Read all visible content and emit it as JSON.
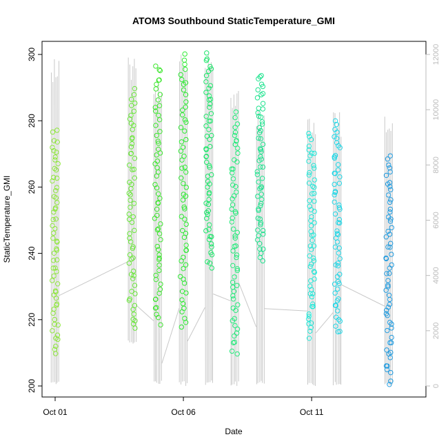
{
  "chart_data": {
    "type": "scatter",
    "title": "ATOM3 Southbound StaticTemperature_GMI",
    "xlabel": "Date",
    "ylabel": "StaticTemperature_GMI",
    "x_ticks": [
      "Oct 01",
      "Oct 06",
      "Oct 11"
    ],
    "x_tick_dates": [
      "2016-10-01",
      "2016-10-06",
      "2016-10-11"
    ],
    "xlim": [
      "2016-10-01",
      "2016-10-15"
    ],
    "ylim": [
      200,
      300
    ],
    "y_ticks": [
      200,
      220,
      240,
      260,
      280,
      300
    ],
    "y2_ticks": [
      0,
      2000,
      4000,
      6000,
      8000,
      10000,
      12000
    ],
    "y2lim": [
      0,
      12000
    ],
    "grid": false,
    "series_points_style": "open circles colored by date (green to blue)",
    "secondary_series_style": "gray altitude line on right axis",
    "flights": [
      {
        "date": "2016-10-01",
        "y_min": 210,
        "y_max": 277,
        "color": "#8ee63c"
      },
      {
        "date": "2016-10-04",
        "y_min": 217,
        "y_max": 289,
        "color": "#6be63c"
      },
      {
        "date": "2016-10-05",
        "y_min": 219,
        "y_max": 297,
        "color": "#3ee62f"
      },
      {
        "date": "2016-10-06",
        "y_min": 218,
        "y_max": 300,
        "color": "#2eea33"
      },
      {
        "date": "2016-10-07",
        "y_min": 236,
        "y_max": 300,
        "color": "#1ce66a"
      },
      {
        "date": "2016-10-08",
        "y_min": 210,
        "y_max": 282,
        "color": "#23ea7a"
      },
      {
        "date": "2016-10-09",
        "y_min": 238,
        "y_max": 294,
        "color": "#1fe38f"
      },
      {
        "date": "2016-10-11",
        "y_min": 215,
        "y_max": 276,
        "color": "#24e8d9"
      },
      {
        "date": "2016-10-12",
        "y_min": 216,
        "y_max": 280,
        "color": "#22d7e6"
      },
      {
        "date": "2016-10-14",
        "y_min": 201,
        "y_max": 269,
        "color": "#1f9be0"
      }
    ],
    "altitude_profiles": [
      {
        "date": "2016-10-01",
        "min": 0,
        "max": 12000
      },
      {
        "date": "2016-10-04",
        "min": 1500,
        "max": 12000
      },
      {
        "date": "2016-10-05",
        "min": 0,
        "max": 11000
      },
      {
        "date": "2016-10-06",
        "min": 0,
        "max": 12000
      },
      {
        "date": "2016-10-07",
        "min": 0,
        "max": 12000
      },
      {
        "date": "2016-10-08",
        "min": 0,
        "max": 11000
      },
      {
        "date": "2016-10-09",
        "min": 0,
        "max": 10000
      },
      {
        "date": "2016-10-11",
        "min": 0,
        "max": 10000
      },
      {
        "date": "2016-10-12",
        "min": 0,
        "max": 10000
      },
      {
        "date": "2016-10-14",
        "min": 0,
        "max": 10000
      }
    ]
  }
}
